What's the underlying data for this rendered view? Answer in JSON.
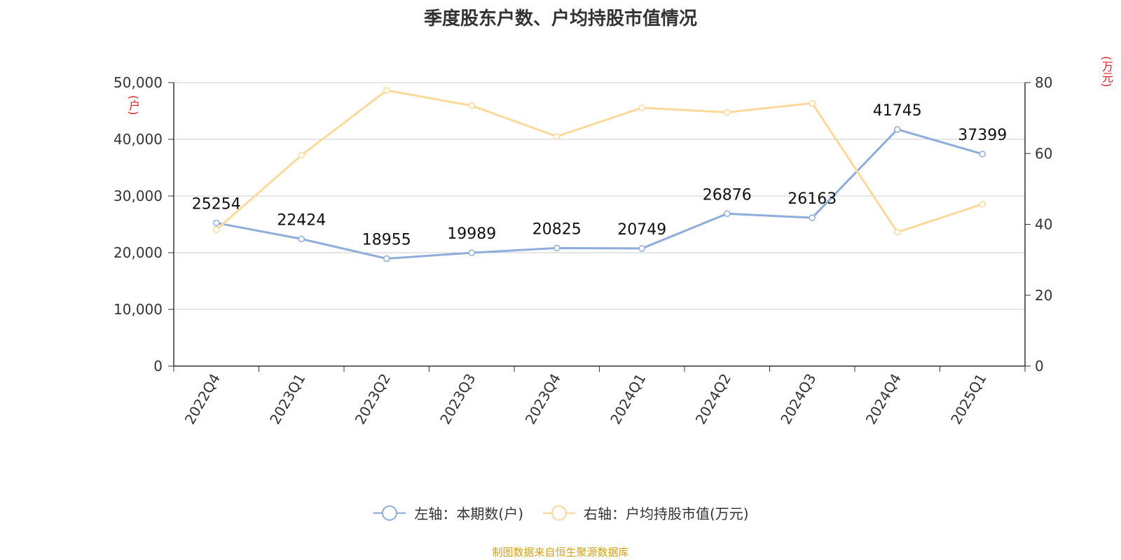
{
  "title": "季度股东户数、户均持股市值情况",
  "source": "制图数据来自恒生聚源数据库",
  "colors": {
    "left_series": "#8eaddb",
    "right_series": "#fcd99a",
    "unit": "#e02020",
    "source": "#d4a017"
  },
  "chart_data": {
    "type": "line",
    "title": "季度股东户数、户均持股市值情况",
    "categories": [
      "2022Q4",
      "2023Q1",
      "2023Q2",
      "2023Q3",
      "2023Q4",
      "2024Q1",
      "2024Q2",
      "2024Q3",
      "2024Q4",
      "2025Q1"
    ],
    "left_axis": {
      "unit": "(户)",
      "min": 0,
      "max": 50000,
      "ticks": [
        "0",
        "10,000",
        "20,000",
        "30,000",
        "40,000",
        "50,000"
      ]
    },
    "right_axis": {
      "unit": "(万元)",
      "min": 0,
      "max": 80,
      "ticks": [
        "0",
        "20",
        "40",
        "60",
        "80"
      ]
    },
    "series": [
      {
        "name": "左轴：本期数(户)",
        "axis": "left",
        "color": "#8eaddb",
        "values": [
          25254,
          22424,
          18955,
          19989,
          20825,
          20749,
          26876,
          26163,
          41745,
          37399
        ],
        "labels": [
          "25254",
          "22424",
          "18955",
          "19989",
          "20825",
          "20749",
          "26876",
          "26163",
          "41745",
          "37399"
        ]
      },
      {
        "name": "右轴：户均持股市值(万元)",
        "axis": "right",
        "color": "#fcd99a",
        "values": [
          38.5,
          59.5,
          77.8,
          73.5,
          64.8,
          72.9,
          71.6,
          74.2,
          37.8,
          45.7
        ]
      }
    ],
    "grid": true,
    "legend": "bottom"
  }
}
